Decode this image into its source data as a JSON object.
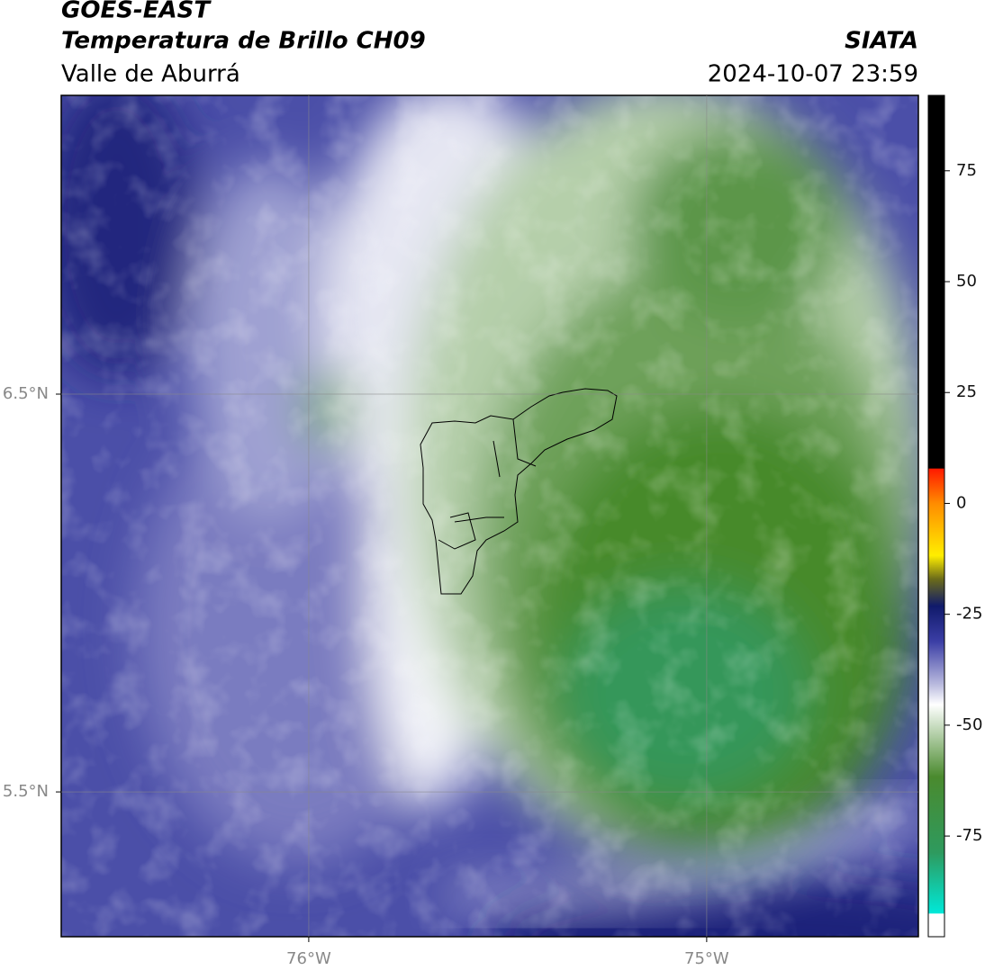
{
  "header": {
    "title": "GOES-EAST",
    "subtitle": "Temperatura de Brillo CH09",
    "region": "Valle de Aburrá",
    "source": "SIATA",
    "timestamp": "2024-10-07 23:59"
  },
  "map": {
    "xlim": [
      -76.622,
      -74.468
    ],
    "ylim": [
      5.136,
      7.251
    ],
    "xticks": [
      {
        "value": -76,
        "label": "76°W"
      },
      {
        "value": -75,
        "label": "75°W"
      }
    ],
    "yticks": [
      {
        "value": 5.5,
        "label": "5.5°N"
      },
      {
        "value": 6.5,
        "label": "6.5°N"
      }
    ],
    "grid": true
  },
  "colorbar": {
    "lim": [
      -97.7,
      92
    ],
    "ticks": [
      -75,
      -50,
      -25,
      0,
      25,
      50,
      75
    ]
  }
}
